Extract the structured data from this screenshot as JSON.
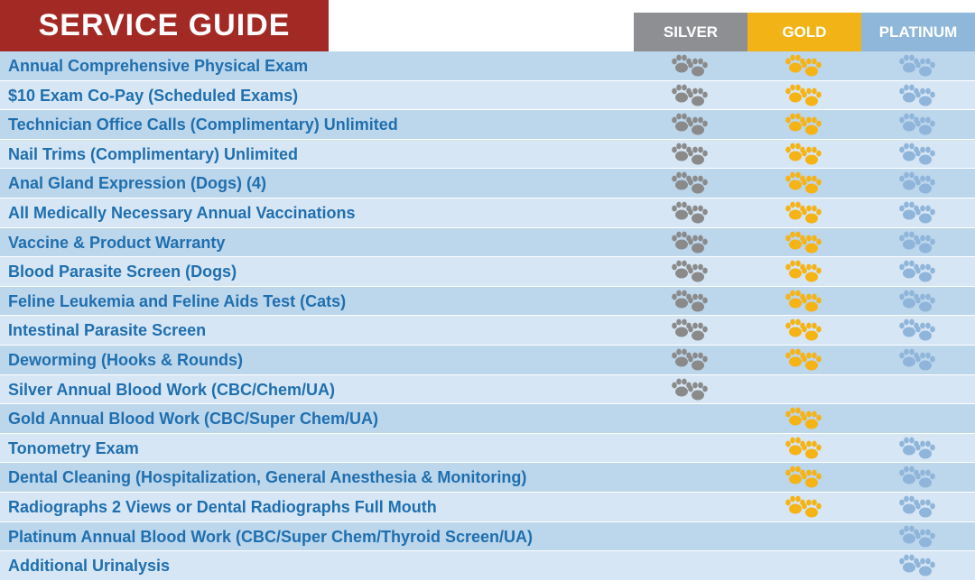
{
  "title": "SERVICE GUIDE",
  "colors": {
    "title_bg": "#a32a24",
    "silver": "#8d8f93",
    "gold": "#f2b316",
    "platinum": "#8eb7da",
    "row_dark": "#bcd6ec",
    "row_light": "#d6e6f5",
    "text": "#1f6fae",
    "paw_silver": "#8a8a8a",
    "paw_gold": "#f5b315",
    "paw_platinum": "#8fb5da"
  },
  "icon": "paw-print-icon",
  "tiers": [
    {
      "key": "silver",
      "label": "SILVER"
    },
    {
      "key": "gold",
      "label": "GOLD"
    },
    {
      "key": "platinum",
      "label": "PLATINUM"
    }
  ],
  "services": [
    {
      "name": "Annual Comprehensive Physical Exam",
      "silver": true,
      "gold": true,
      "platinum": true
    },
    {
      "name": "$10 Exam Co-Pay (Scheduled Exams)",
      "silver": true,
      "gold": true,
      "platinum": true
    },
    {
      "name": "Technician Office Calls (Complimentary) Unlimited",
      "silver": true,
      "gold": true,
      "platinum": true
    },
    {
      "name": "Nail Trims (Complimentary) Unlimited",
      "silver": true,
      "gold": true,
      "platinum": true
    },
    {
      "name": "Anal Gland Expression (Dogs) (4)",
      "silver": true,
      "gold": true,
      "platinum": true
    },
    {
      "name": "All Medically Necessary Annual Vaccinations",
      "silver": true,
      "gold": true,
      "platinum": true
    },
    {
      "name": "Vaccine & Product Warranty",
      "silver": true,
      "gold": true,
      "platinum": true
    },
    {
      "name": "Blood Parasite Screen (Dogs)",
      "silver": true,
      "gold": true,
      "platinum": true
    },
    {
      "name": "Feline Leukemia and Feline Aids Test (Cats)",
      "silver": true,
      "gold": true,
      "platinum": true
    },
    {
      "name": "Intestinal Parasite Screen",
      "silver": true,
      "gold": true,
      "platinum": true
    },
    {
      "name": "Deworming (Hooks & Rounds)",
      "silver": true,
      "gold": true,
      "platinum": true
    },
    {
      "name": "Silver Annual Blood Work (CBC/Chem/UA)",
      "silver": true,
      "gold": false,
      "platinum": false
    },
    {
      "name": "Gold Annual Blood Work (CBC/Super Chem/UA)",
      "silver": false,
      "gold": true,
      "platinum": false
    },
    {
      "name": "Tonometry Exam",
      "silver": false,
      "gold": true,
      "platinum": true
    },
    {
      "name": "Dental Cleaning (Hospitalization, General Anesthesia & Monitoring)",
      "silver": false,
      "gold": true,
      "platinum": true
    },
    {
      "name": "Radiographs 2 Views or Dental Radiographs Full Mouth",
      "silver": false,
      "gold": true,
      "platinum": true
    },
    {
      "name": "Platinum Annual Blood Work (CBC/Super Chem/Thyroid Screen/UA)",
      "silver": false,
      "gold": false,
      "platinum": true
    },
    {
      "name": "Additional Urinalysis",
      "silver": false,
      "gold": false,
      "platinum": true
    }
  ]
}
